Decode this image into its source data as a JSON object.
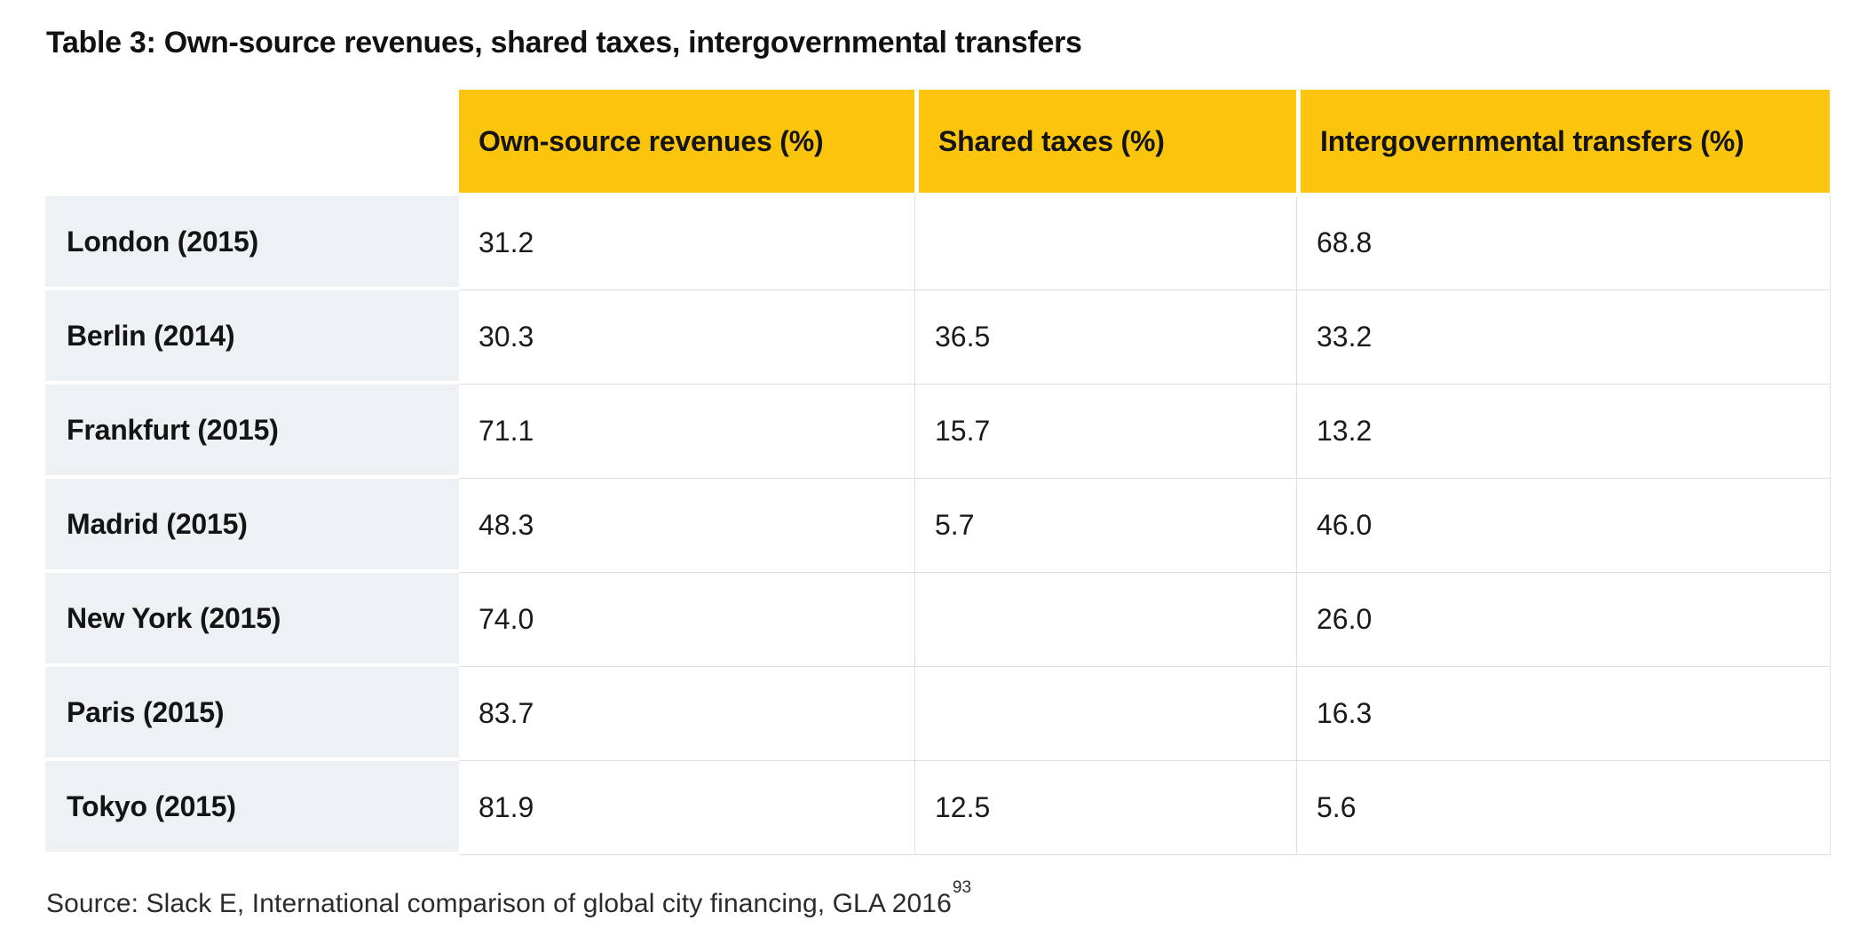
{
  "title": "Table 3: Own-source revenues, shared taxes, intergovernmental transfers",
  "table": {
    "columns": [
      "Own-source revenues (%)",
      "Shared taxes (%)",
      "Intergovernmental transfers (%)"
    ],
    "rows": [
      {
        "label": "London (2015)",
        "values": [
          "31.2",
          "",
          "68.8"
        ]
      },
      {
        "label": "Berlin (2014)",
        "values": [
          "30.3",
          "36.5",
          "33.2"
        ]
      },
      {
        "label": "Frankfurt (2015)",
        "values": [
          "71.1",
          "15.7",
          "13.2"
        ]
      },
      {
        "label": "Madrid (2015)",
        "values": [
          "48.3",
          "5.7",
          "46.0"
        ]
      },
      {
        "label": "New York (2015)",
        "values": [
          "74.0",
          "",
          "26.0"
        ]
      },
      {
        "label": "Paris (2015)",
        "values": [
          "83.7",
          "",
          "16.3"
        ]
      },
      {
        "label": "Tokyo (2015)",
        "values": [
          "81.9",
          "12.5",
          "5.6"
        ]
      }
    ]
  },
  "source": {
    "text": "Source: Slack E, International comparison of global city financing, GLA 2016",
    "superscript": "93"
  },
  "colors": {
    "header_bg": "#FCC50D",
    "row_label_bg": "#EDF1F4",
    "border": "#DEDEDE"
  },
  "chart_data": {
    "type": "table",
    "title": "Table 3: Own-source revenues, shared taxes, intergovernmental transfers",
    "categories": [
      "London (2015)",
      "Berlin (2014)",
      "Frankfurt (2015)",
      "Madrid (2015)",
      "New York (2015)",
      "Paris (2015)",
      "Tokyo (2015)"
    ],
    "series": [
      {
        "name": "Own-source revenues (%)",
        "values": [
          31.2,
          30.3,
          71.1,
          48.3,
          74.0,
          83.7,
          81.9
        ]
      },
      {
        "name": "Shared taxes (%)",
        "values": [
          null,
          36.5,
          15.7,
          5.7,
          null,
          null,
          12.5
        ]
      },
      {
        "name": "Intergovernmental transfers (%)",
        "values": [
          68.8,
          33.2,
          13.2,
          46.0,
          26.0,
          16.3,
          5.6
        ]
      }
    ]
  }
}
